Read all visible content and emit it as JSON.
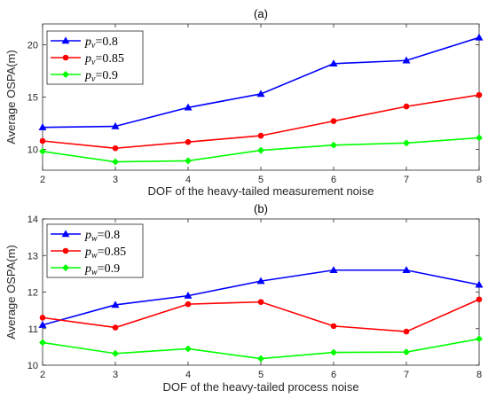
{
  "chart_data": [
    {
      "type": "line",
      "title": "(a)",
      "xlabel": "DOF of the heavy-tailed measurement noise",
      "ylabel": "Average OSPA(m)",
      "x": [
        2,
        3,
        4,
        5,
        6,
        7,
        8
      ],
      "xlim": [
        2,
        8
      ],
      "ylim": [
        8,
        22
      ],
      "yticks": [
        10,
        15,
        20
      ],
      "xticks": [
        2,
        3,
        4,
        5,
        6,
        7,
        8
      ],
      "grid": false,
      "legend_position": "top-left",
      "series": [
        {
          "name": "p_v=0.8",
          "sym": "p",
          "sub": "v",
          "eq": "=0.8",
          "color": "#0000ff",
          "marker": "triangle",
          "values": [
            12.1,
            12.2,
            14.0,
            15.3,
            18.2,
            18.5,
            20.7
          ]
        },
        {
          "name": "p_v=0.85",
          "sym": "p",
          "sub": "v",
          "eq": "=0.85",
          "color": "#ff0000",
          "marker": "circle",
          "values": [
            10.8,
            10.1,
            10.7,
            11.3,
            12.7,
            14.1,
            15.2
          ]
        },
        {
          "name": "p_v=0.9",
          "sym": "p",
          "sub": "v",
          "eq": "=0.9",
          "color": "#00ff00",
          "marker": "diamond",
          "values": [
            9.8,
            8.8,
            8.9,
            9.9,
            10.4,
            10.6,
            11.1
          ]
        }
      ]
    },
    {
      "type": "line",
      "title": "(b)",
      "xlabel": "DOF of the heavy-tailed process noise",
      "ylabel": "Average OSPA(m)",
      "x": [
        2,
        3,
        4,
        5,
        6,
        7,
        8
      ],
      "xlim": [
        2,
        8
      ],
      "ylim": [
        10,
        14
      ],
      "yticks": [
        10,
        11,
        12,
        13,
        14
      ],
      "xticks": [
        2,
        3,
        4,
        5,
        6,
        7,
        8
      ],
      "grid": false,
      "legend_position": "top-left",
      "series": [
        {
          "name": "p_w=0.8",
          "sym": "p",
          "sub": "w",
          "eq": "=0.8",
          "color": "#0000ff",
          "marker": "triangle",
          "values": [
            11.1,
            11.65,
            11.9,
            12.3,
            12.6,
            12.6,
            12.2
          ]
        },
        {
          "name": "p_w=0.85",
          "sym": "p",
          "sub": "w",
          "eq": "=0.85",
          "color": "#ff0000",
          "marker": "circle",
          "values": [
            11.3,
            11.03,
            11.67,
            11.73,
            11.07,
            10.92,
            11.8
          ]
        },
        {
          "name": "p_w=0.9",
          "sym": "p",
          "sub": "w",
          "eq": "=0.9",
          "color": "#00ff00",
          "marker": "diamond",
          "values": [
            10.62,
            10.32,
            10.45,
            10.18,
            10.35,
            10.36,
            10.72
          ]
        }
      ]
    }
  ]
}
